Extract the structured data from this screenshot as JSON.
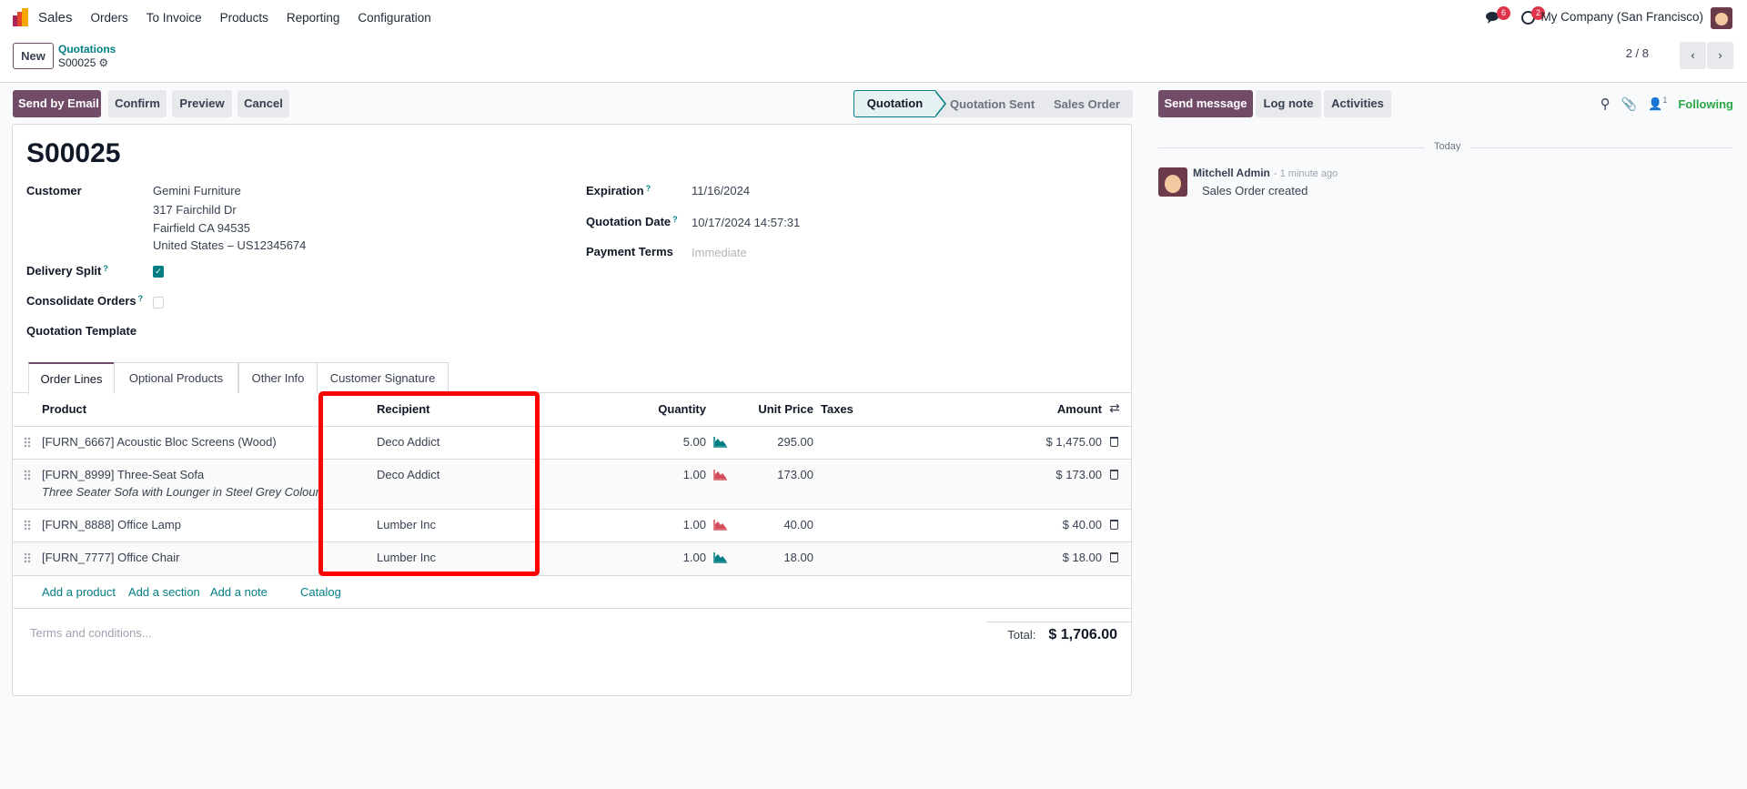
{
  "navbar": {
    "app": "Sales",
    "menu": [
      "Orders",
      "To Invoice",
      "Products",
      "Reporting",
      "Configuration"
    ],
    "messages_count": "6",
    "activities_count": "2",
    "company": "My Company (San Francisco)"
  },
  "control": {
    "new_label": "New",
    "breadcrumb_parent": "Quotations",
    "breadcrumb_current": "S00025",
    "pager": "2 / 8"
  },
  "actions": [
    "Send by Email",
    "Confirm",
    "Preview",
    "Cancel"
  ],
  "statusbar": {
    "stages": [
      "Quotation",
      "Quotation Sent",
      "Sales Order"
    ],
    "active": "Quotation"
  },
  "form": {
    "title": "S00025",
    "customer_label": "Customer",
    "customer_lines": [
      "Gemini Furniture",
      "317 Fairchild Dr",
      "Fairfield CA 94535",
      "United States – US12345674"
    ],
    "delivery_split_label": "Delivery Split",
    "delivery_split": true,
    "consolidate_label": "Consolidate Orders",
    "consolidate": false,
    "template_label": "Quotation Template",
    "expiration_label": "Expiration",
    "expiration": "11/16/2024",
    "qdate_label": "Quotation Date",
    "qdate": "10/17/2024 14:57:31",
    "payment_label": "Payment Terms",
    "payment_placeholder": "Immediate",
    "help_mark": "?"
  },
  "tabs": [
    "Order Lines",
    "Optional Products",
    "Other Info",
    "Customer Signature"
  ],
  "table": {
    "headers": {
      "product": "Product",
      "recipient": "Recipient",
      "quantity": "Quantity",
      "unit_price": "Unit Price",
      "taxes": "Taxes",
      "amount": "Amount"
    },
    "rows": [
      {
        "product": "[FURN_6667] Acoustic Bloc Screens (Wood)",
        "description": "",
        "recipient": "Deco Addict",
        "quantity": "5.00",
        "forecast": "available",
        "unit_price": "295.00",
        "amount": "$ 1,475.00"
      },
      {
        "product": "[FURN_8999] Three-Seat Sofa",
        "description": "Three Seater Sofa with Lounger in Steel Grey Colour",
        "recipient": "Deco Addict",
        "quantity": "1.00",
        "forecast": "unavailable",
        "unit_price": "173.00",
        "amount": "$ 173.00"
      },
      {
        "product": "[FURN_8888] Office Lamp",
        "description": "",
        "recipient": "Lumber Inc",
        "quantity": "1.00",
        "forecast": "unavailable",
        "unit_price": "40.00",
        "amount": "$ 40.00"
      },
      {
        "product": "[FURN_7777] Office Chair",
        "description": "",
        "recipient": "Lumber Inc",
        "quantity": "1.00",
        "forecast": "available",
        "unit_price": "18.00",
        "amount": "$ 18.00"
      }
    ],
    "add_links": [
      "Add a product",
      "Add a section",
      "Add a note",
      "Catalog"
    ],
    "terms_placeholder": "Terms and conditions...",
    "total_label": "Total:",
    "total": "$ 1,706.00"
  },
  "chatter": {
    "send_message": "Send message",
    "log_note": "Log note",
    "activities": "Activities",
    "followers_count": "1",
    "following": "Following",
    "date_sep": "Today",
    "author": "Mitchell Admin",
    "time": "- 1 minute ago",
    "message": "Sales Order created"
  },
  "colors": {
    "primary": "#714b67",
    "teal": "#017e84",
    "highlight": "#ff0000",
    "available": "#017e84",
    "unavailable": "#d44c59",
    "following": "#28a745"
  }
}
